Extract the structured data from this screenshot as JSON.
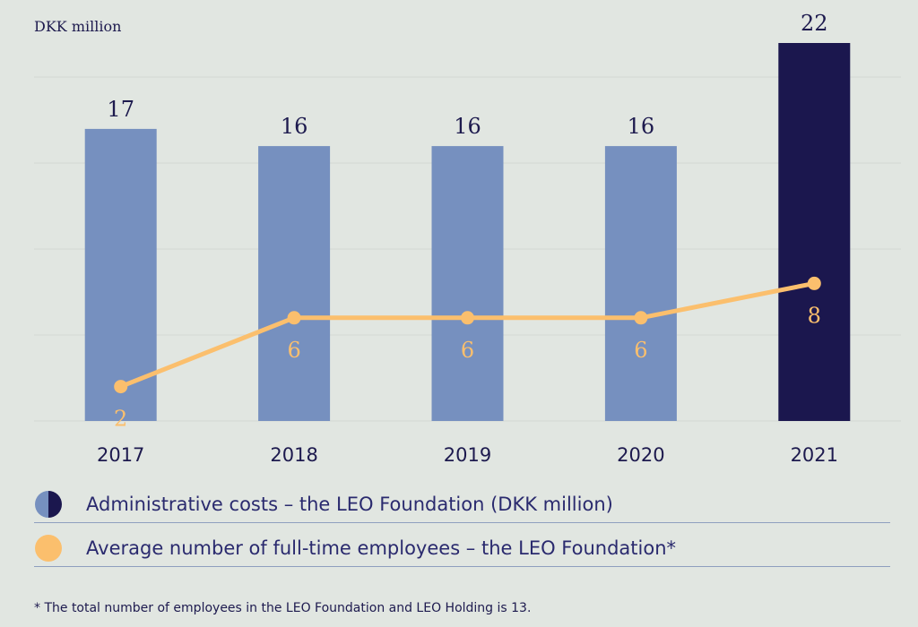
{
  "unit_label": "DKK million",
  "legend": {
    "admin_costs": "Administrative costs – the LEO Foundation (DKK million)",
    "employees": "Average number of full-time employees – the LEO Foundation*"
  },
  "footnote": "* The total number of employees in the LEO Foundation and LEO Holding is 13.",
  "chart_data": {
    "type": "bar",
    "categories": [
      "2017",
      "2018",
      "2019",
      "2020",
      "2021"
    ],
    "series": [
      {
        "values": [
          17,
          16,
          16,
          16,
          22
        ],
        "value_labels": [
          "17",
          "16",
          "16",
          "16",
          "22"
        ],
        "colors": [
          "#7690bf",
          "#7690bf",
          "#7690bf",
          "#7690bf",
          "#1b174e"
        ]
      },
      {
        "type": "line",
        "values": [
          2,
          6,
          6,
          6,
          8
        ],
        "value_labels": [
          "2",
          "6",
          "6",
          "6",
          "8"
        ],
        "color": "#fbbf6d"
      }
    ],
    "ylabel": "DKK million",
    "grid": true
  },
  "colors": {
    "background": "#e1e6e1",
    "bar": "#7690bf",
    "bar_highlight": "#1b174e",
    "line": "#fbbf6d",
    "text": "#1d1a4e",
    "gridline": "#d3d8d3"
  }
}
